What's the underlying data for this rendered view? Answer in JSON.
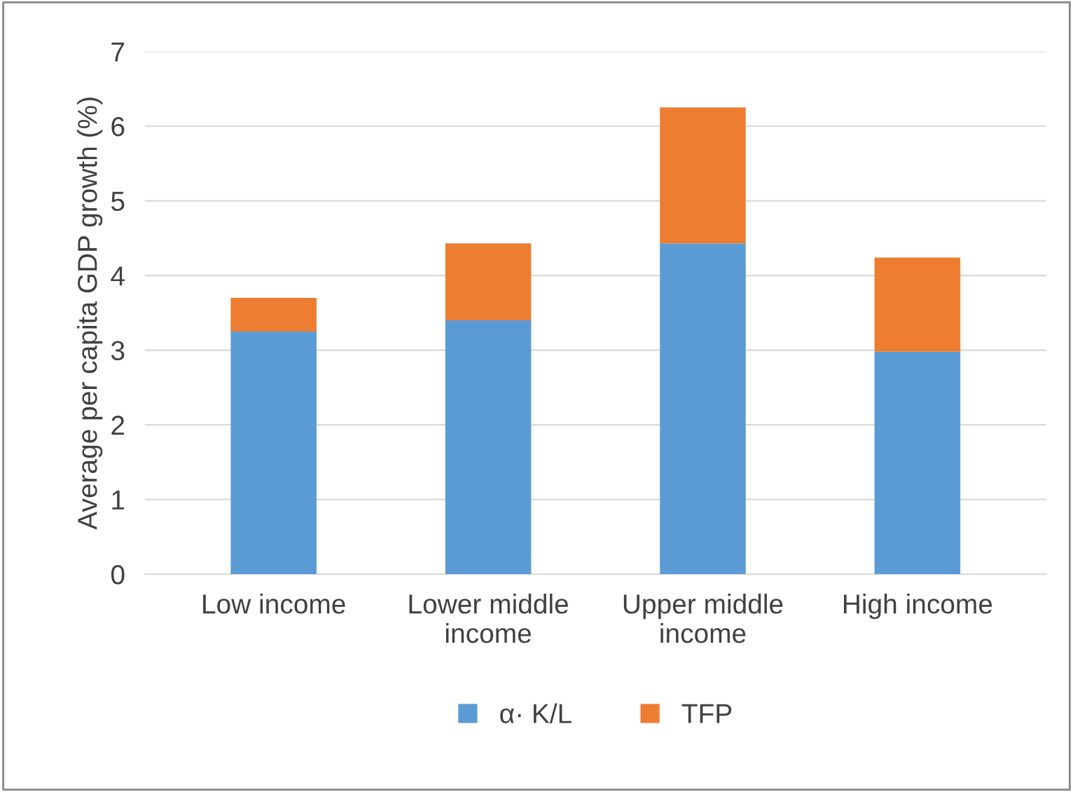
{
  "chart_data": {
    "type": "bar",
    "stacked": true,
    "ylabel": "Average per capita GDP growth (%)",
    "categories": [
      "Low income",
      "Lower middle\nincome",
      "Upper middle\nincome",
      "High income"
    ],
    "series": [
      {
        "name": "α· K/L",
        "color": "#5b9bd5",
        "values": [
          3.25,
          3.4,
          4.43,
          2.98
        ]
      },
      {
        "name": "TFP",
        "color": "#ed7d31",
        "values": [
          0.45,
          1.03,
          1.82,
          1.26
        ]
      }
    ],
    "ylim": [
      0,
      7
    ],
    "yticks": [
      0,
      1,
      2,
      3,
      4,
      5,
      6,
      7
    ],
    "grid": "y",
    "legend": "bottom"
  }
}
